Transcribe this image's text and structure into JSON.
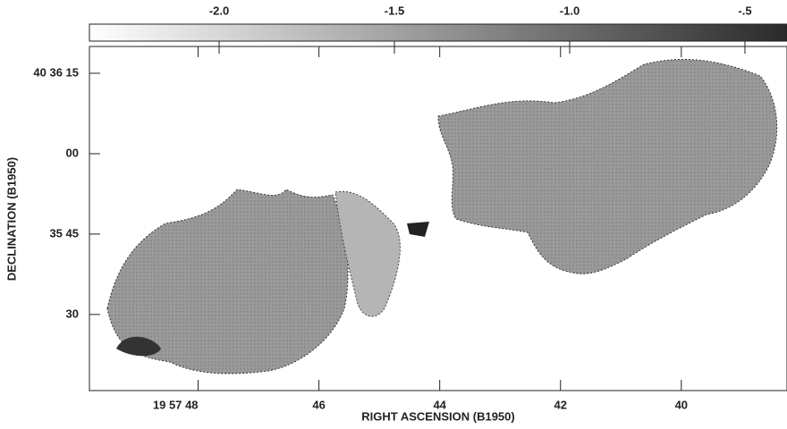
{
  "chart_data": {
    "type": "image",
    "xlabel": "RIGHT ASCENSION (B1950)",
    "ylabel": "DECLINATION (B1950)",
    "xlim": [
      49.8,
      38.25
    ],
    "xticks": [
      {
        "value": 48,
        "label": "19 57 48"
      },
      46,
      44,
      42,
      40
    ],
    "ylim": [
      15.8,
      80
    ],
    "yticks": [
      {
        "value": 75,
        "label": "40 36 15"
      },
      {
        "value": 60,
        "label": "00"
      },
      {
        "value": 45,
        "label": "35 45"
      },
      30
    ],
    "colorbar": {
      "lim": [
        -2.37,
        -0.38
      ],
      "ticks": [
        {
          "value": -2.0,
          "label": "-2.0"
        },
        -1.5,
        {
          "value": -1.0,
          "label": "-1.0"
        },
        {
          "value": -0.5,
          "label": "-.5"
        }
      ],
      "colors": [
        "#ffffff",
        "#2a2a2a"
      ]
    }
  }
}
